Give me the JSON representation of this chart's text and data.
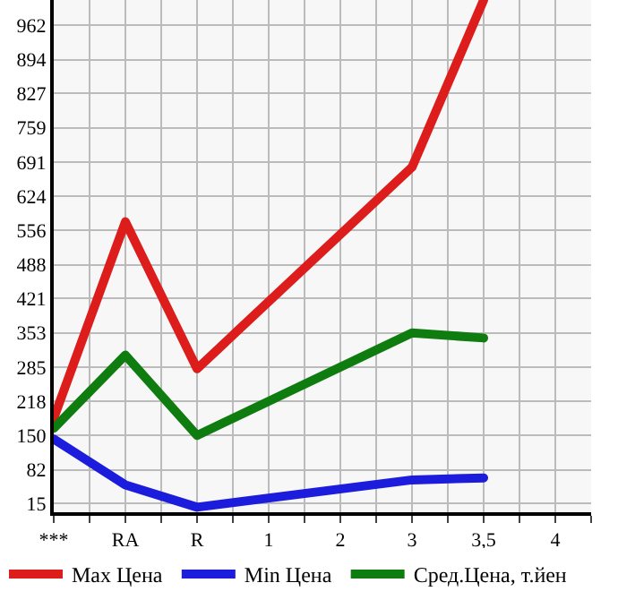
{
  "chart_data": {
    "type": "line",
    "categories": [
      "***",
      "RA",
      "R",
      "1",
      "2",
      "3",
      "3,5",
      "4"
    ],
    "series": [
      {
        "name": "Max Цена",
        "color": "#dd1c1c",
        "values": [
          184,
          573,
          282,
          null,
          null,
          681,
          1012,
          null
        ]
      },
      {
        "name": "Min Цена",
        "color": "#1c1cdd",
        "values": [
          143,
          52,
          8,
          null,
          null,
          62,
          66,
          null
        ]
      },
      {
        "name": "Сред.Цена, т.йен",
        "color": "#0e7c0e",
        "values": [
          164,
          309,
          150,
          null,
          null,
          353,
          343,
          null
        ]
      }
    ],
    "ylim": [
      -2,
      1012
    ],
    "yticks": [
      15,
      82,
      150,
      218,
      285,
      353,
      421,
      488,
      556,
      624,
      691,
      759,
      827,
      894,
      962
    ],
    "grid": true,
    "legend": "bottom",
    "marker": "none",
    "line_style": "solid"
  }
}
